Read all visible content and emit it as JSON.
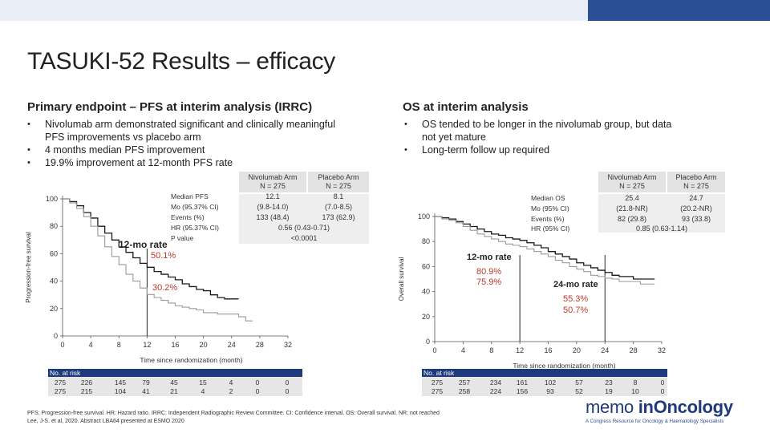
{
  "slide": {
    "title": "TASUKI-52 Results – efficacy",
    "left_heading": "Primary endpoint – PFS at interim analysis (IRRC)",
    "left_bullets": [
      "Nivolumab arm demonstrated significant and clinically meaningful PFS improvements vs placebo arm",
      "4 months median PFS improvement",
      "19.9% improvement at 12-month PFS rate"
    ],
    "right_heading": "OS at interim analysis",
    "right_bullets": [
      "OS tended to be longer in the nivolumab group, but data not yet mature",
      "Long-term follow up required"
    ],
    "footnote_line1": "PFS: Progression-free survival. HR: Hazard ratio. IRRC: Independent Radiographic Review Committee. CI: Confidence interval. OS: Overall survival. NR: not reached",
    "footnote_line2": "Lee, J-S. et al, 2020. Abstract LBA64 presented at ESMO 2020",
    "logo_word1": "memo",
    "logo_word2": "inOncology",
    "logo_tagline": "A Congress Resource for Oncology & Haematology Specialists"
  },
  "colors": {
    "nivolumab": "#1a1a1a",
    "placebo": "#9a9a9a",
    "rate_red": "#c0392b",
    "table_header": "#1f3a7a",
    "accent": "#2b4f95"
  },
  "pfs": {
    "ylabel": "Progression-free survival",
    "xlabel": "Time since randomization (month)",
    "y_ticks": [
      "0",
      "20",
      "40",
      "60",
      "80",
      "100"
    ],
    "x_ticks": [
      "0",
      "4",
      "8",
      "12",
      "16",
      "20",
      "24",
      "28",
      "32"
    ],
    "stats": {
      "col1": [
        "Nivolumab Arm",
        "N = 275"
      ],
      "col2": [
        "Placebo Arm",
        "N = 275"
      ],
      "rows": [
        {
          "label": "Median PFS",
          "v1": "12.1",
          "v2": "8.1"
        },
        {
          "label": "Mo (95.37% CI)",
          "v1": "(9.8-14.0)",
          "v2": "(7.0-8.5)"
        },
        {
          "label": "Events (%)",
          "v1": "133 (48.4)",
          "v2": "173 (62.9)"
        },
        {
          "label": "HR (95.37% CI)",
          "span": "0.56 (0.43-0.71)"
        },
        {
          "label": "P value",
          "span": "<0.0001"
        }
      ]
    },
    "rate_title": "12-mo rate",
    "rate_niv": "50.1%",
    "rate_pla": "30.2%",
    "at_risk_title": "No. at risk",
    "at_risk": [
      [
        "275",
        "226",
        "145",
        "79",
        "45",
        "15",
        "4",
        "0",
        "0"
      ],
      [
        "275",
        "215",
        "104",
        "41",
        "21",
        "4",
        "2",
        "0",
        "0"
      ]
    ]
  },
  "os": {
    "ylabel": "Overall survival",
    "xlabel": "Time since randomization (month)",
    "y_ticks": [
      "0",
      "20",
      "40",
      "60",
      "80",
      "100"
    ],
    "x_ticks": [
      "0",
      "4",
      "8",
      "12",
      "16",
      "20",
      "24",
      "28",
      "32"
    ],
    "stats": {
      "col1": [
        "Nivolumab Arm",
        "N = 275"
      ],
      "col2": [
        "Placebo Arm",
        "N = 275"
      ],
      "rows": [
        {
          "label": "Median OS",
          "v1": "25.4",
          "v2": "24.7"
        },
        {
          "label": "Mo (95% CI)",
          "v1": "(21.8-NR)",
          "v2": "(20.2-NR)"
        },
        {
          "label": "Events (%)",
          "v1": "82 (29.8)",
          "v2": "93 (33.8)"
        },
        {
          "label": "HR (95% CI)",
          "span": "0.85 (0.63-1.14)"
        }
      ]
    },
    "rate12_title": "12-mo rate",
    "rate12_niv": "80.9%",
    "rate12_pla": "75.9%",
    "rate24_title": "24-mo rate",
    "rate24_niv": "55.3%",
    "rate24_pla": "50.7%",
    "at_risk_title": "No. at risk",
    "at_risk": [
      [
        "275",
        "257",
        "234",
        "161",
        "102",
        "57",
        "23",
        "8",
        "0"
      ],
      [
        "275",
        "258",
        "224",
        "156",
        "93",
        "52",
        "19",
        "10",
        "0"
      ]
    ]
  },
  "chart_data": [
    {
      "type": "line",
      "title": "Progression-free survival (IRRC)",
      "xlabel": "Time since randomization (month)",
      "ylabel": "Progression-free survival",
      "xlim": [
        0,
        32
      ],
      "ylim": [
        0,
        100
      ],
      "series": [
        {
          "name": "Nivolumab Arm",
          "x": [
            0,
            1,
            2,
            3,
            4,
            5,
            6,
            7,
            8,
            9,
            10,
            11,
            12,
            13,
            14,
            15,
            16,
            17,
            18,
            19,
            20,
            21,
            22,
            23,
            24,
            25
          ],
          "y": [
            100,
            98,
            95,
            90,
            86,
            80,
            75,
            70,
            65,
            61,
            57,
            53,
            50.1,
            47,
            45,
            43,
            41,
            38,
            36,
            34,
            33,
            30,
            28,
            27,
            27,
            27
          ]
        },
        {
          "name": "Placebo Arm",
          "x": [
            0,
            1,
            2,
            3,
            4,
            5,
            6,
            7,
            8,
            9,
            10,
            11,
            12,
            13,
            14,
            15,
            16,
            17,
            18,
            19,
            20,
            21,
            22,
            23,
            24,
            25,
            26,
            27
          ],
          "y": [
            100,
            97,
            93,
            87,
            80,
            73,
            65,
            58,
            52,
            45,
            40,
            35,
            30.2,
            28,
            26,
            24,
            22,
            21,
            20,
            19,
            17,
            17,
            16,
            16,
            16,
            14,
            11,
            11
          ]
        }
      ]
    },
    {
      "type": "line",
      "title": "Overall survival",
      "xlabel": "Time since randomization (month)",
      "ylabel": "Overall survival",
      "xlim": [
        0,
        32
      ],
      "ylim": [
        0,
        100
      ],
      "series": [
        {
          "name": "Nivolumab Arm",
          "x": [
            0,
            1,
            2,
            3,
            4,
            5,
            6,
            7,
            8,
            9,
            10,
            11,
            12,
            13,
            14,
            15,
            16,
            17,
            18,
            19,
            20,
            21,
            22,
            23,
            24,
            25,
            26,
            27,
            28,
            29,
            30,
            31
          ],
          "y": [
            100,
            99,
            98,
            96,
            94,
            92,
            90,
            88,
            86,
            85,
            83,
            82,
            80.9,
            79,
            77,
            75,
            72,
            70,
            68,
            66,
            63,
            61,
            59,
            57,
            55.3,
            53,
            52,
            52,
            50,
            50,
            50,
            50
          ]
        },
        {
          "name": "Placebo Arm",
          "x": [
            0,
            1,
            2,
            3,
            4,
            5,
            6,
            7,
            8,
            9,
            10,
            11,
            12,
            13,
            14,
            15,
            16,
            17,
            18,
            19,
            20,
            21,
            22,
            23,
            24,
            25,
            26,
            27,
            28,
            29,
            30,
            31
          ],
          "y": [
            100,
            98,
            97,
            95,
            92,
            89,
            86,
            84,
            82,
            80,
            78,
            77,
            75.9,
            74,
            72,
            70,
            68,
            65,
            63,
            60,
            58,
            56,
            53,
            52,
            50.7,
            50,
            48,
            48,
            48,
            46,
            46,
            46
          ]
        }
      ]
    }
  ]
}
